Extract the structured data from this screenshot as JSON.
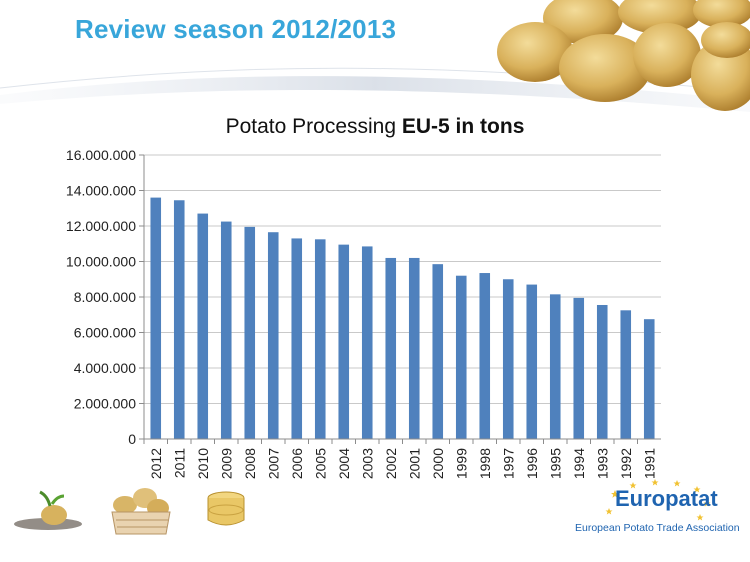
{
  "slide": {
    "title": "Review season 2012/2013"
  },
  "chart_data": {
    "type": "bar",
    "title_part1": "Potato Processing ",
    "title_part2": "EU-5 in tons",
    "xlabel": "",
    "ylabel": "",
    "categories": [
      "2012",
      "2011",
      "2010",
      "2009",
      "2008",
      "2007",
      "2006",
      "2005",
      "2004",
      "2003",
      "2002",
      "2001",
      "2000",
      "1999",
      "1998",
      "1997",
      "1996",
      "1995",
      "1994",
      "1993",
      "1992",
      "1991"
    ],
    "values": [
      13600000,
      13450000,
      12700000,
      12250000,
      11950000,
      11650000,
      11300000,
      11250000,
      10950000,
      10850000,
      10200000,
      10200000,
      9850000,
      9200000,
      9350000,
      9000000,
      8700000,
      8150000,
      7950000,
      7550000,
      7250000,
      6750000
    ],
    "ylim": [
      0,
      16000000
    ],
    "yticks": [
      0,
      2000000,
      4000000,
      6000000,
      8000000,
      10000000,
      12000000,
      14000000,
      16000000
    ],
    "ytick_labels": [
      "0",
      "2.000.000",
      "4.000.000",
      "6.000.000",
      "8.000.000",
      "10.000.000",
      "12.000.000",
      "14.000.000",
      "16.000.000"
    ],
    "grid": true,
    "bar_color": "#4f81bd"
  },
  "logo": {
    "name": "Europatat",
    "tagline": "European Potato Trade Association"
  },
  "colors": {
    "title": "#38a6da",
    "logo": "#1f64b0"
  }
}
